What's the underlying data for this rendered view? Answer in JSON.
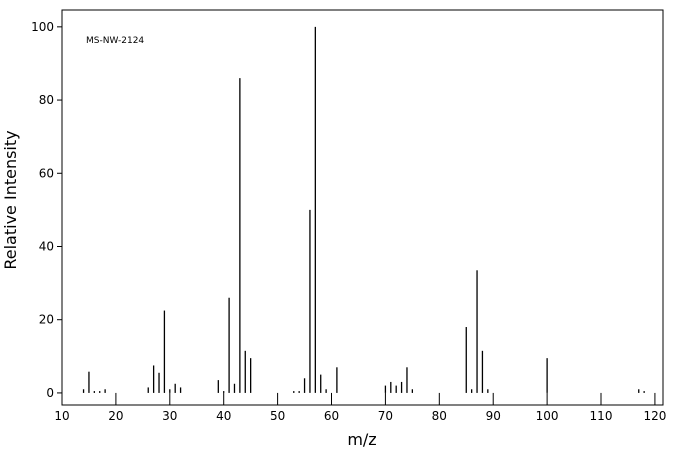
{
  "chart_data": {
    "type": "stick",
    "annotation": "MS-NW-2124",
    "xlabel": "m/z",
    "ylabel": "Relative Intensity",
    "x": [
      14,
      15,
      16,
      17,
      18,
      26,
      27,
      28,
      29,
      30,
      31,
      32,
      39,
      40,
      41,
      42,
      43,
      44,
      45,
      53,
      54,
      55,
      56,
      57,
      58,
      59,
      61,
      70,
      71,
      72,
      73,
      74,
      75,
      85,
      86,
      87,
      88,
      89,
      100,
      117,
      118
    ],
    "values": [
      1,
      5.8,
      0.5,
      0.5,
      1,
      1.5,
      7.5,
      5.5,
      22.5,
      1,
      2.5,
      1.5,
      3.5,
      0.5,
      26,
      2.5,
      86,
      11.5,
      9.5,
      0.5,
      0.5,
      4,
      50,
      100,
      5,
      1,
      7,
      2,
      3,
      2,
      3,
      7,
      1,
      18,
      1,
      33.5,
      11.5,
      1,
      9.5,
      1,
      0.5
    ],
    "color": "#000000",
    "xlim": [
      10,
      121.5
    ],
    "ylim": [
      -3.3,
      104.6
    ],
    "xticks": [
      10,
      20,
      30,
      40,
      50,
      60,
      70,
      80,
      90,
      100,
      110,
      120
    ],
    "yticks": [
      0,
      20,
      40,
      60,
      80,
      100
    ]
  }
}
